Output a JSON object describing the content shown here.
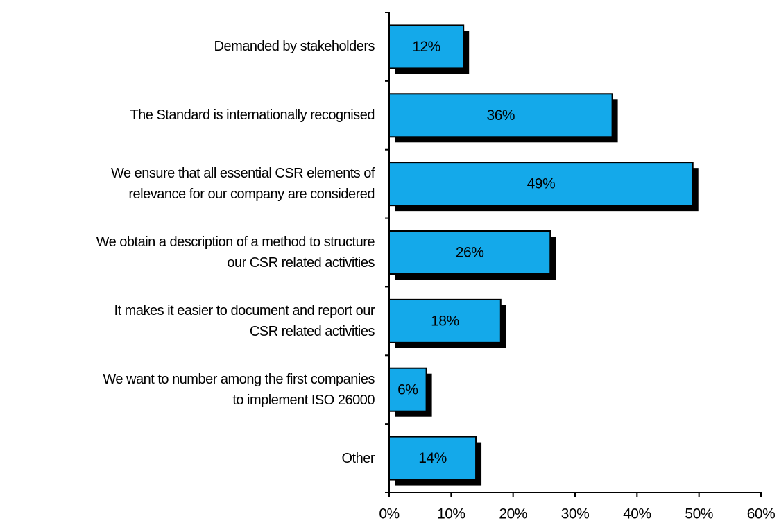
{
  "chart_data": {
    "type": "bar",
    "orientation": "horizontal",
    "categories": [
      "Demanded by stakeholders",
      "The Standard is internationally recognised",
      "We ensure that all essential CSR elements of\nrelevance for our company are considered",
      "We obtain a description of a method to structure\nour CSR related activities",
      "It makes it easier to document and report our\nCSR related activities",
      "We want to number among the first companies\nto implement ISO 26000",
      "Other"
    ],
    "values": [
      12,
      36,
      49,
      26,
      18,
      6,
      14
    ],
    "value_labels": [
      "12%",
      "36%",
      "49%",
      "26%",
      "18%",
      "6%",
      "14%"
    ],
    "color": "#14a9ea",
    "xlim": [
      0,
      60
    ],
    "xticks": [
      {
        "value": 0,
        "label": "0%"
      },
      {
        "value": 10,
        "label": "10%"
      },
      {
        "value": 20,
        "label": "20%"
      },
      {
        "value": 30,
        "label": "30%"
      },
      {
        "value": 40,
        "label": "40%"
      },
      {
        "value": 50,
        "label": "50%"
      },
      {
        "value": 60,
        "label": "60%"
      }
    ]
  }
}
